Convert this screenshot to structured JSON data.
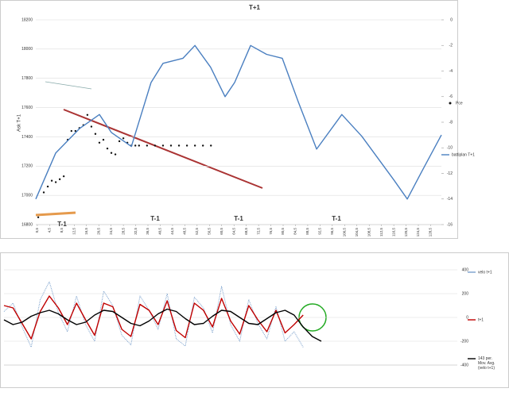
{
  "chart_data": [
    {
      "type": "line",
      "title": "T+1",
      "y_label": "Ask T+1",
      "xlim": [
        0,
        132
      ],
      "xticks": [
        {
          "value": 0.5,
          "label": "0,5"
        },
        {
          "value": 4.5,
          "label": "4,5"
        },
        {
          "value": 8.5,
          "label": "8,5"
        },
        {
          "value": 12.5,
          "label": "12,5"
        },
        {
          "value": 16.5,
          "label": "16,5"
        },
        {
          "value": 20.5,
          "label": "20,5"
        },
        {
          "value": 24.5,
          "label": "24,5"
        },
        {
          "value": 28.5,
          "label": "28,5"
        },
        {
          "value": 32.5,
          "label": "32,5"
        },
        {
          "value": 36.5,
          "label": "36,5"
        },
        {
          "value": 40.5,
          "label": "40,5"
        },
        {
          "value": 44.5,
          "label": "44,5"
        },
        {
          "value": 48.5,
          "label": "48,5"
        },
        {
          "value": 52.5,
          "label": "52,5"
        },
        {
          "value": 56.5,
          "label": "56,5"
        },
        {
          "value": 60.5,
          "label": "60,5"
        },
        {
          "value": 64.5,
          "label": "64,5"
        },
        {
          "value": 68.5,
          "label": "68,5"
        },
        {
          "value": 72.5,
          "label": "72,5"
        },
        {
          "value": 76.5,
          "label": "76,5"
        },
        {
          "value": 80.5,
          "label": "80,5"
        },
        {
          "value": 84.5,
          "label": "84,5"
        },
        {
          "value": 88.5,
          "label": "88,5"
        },
        {
          "value": 92.5,
          "label": "92,5"
        },
        {
          "value": 96.5,
          "label": "96,5"
        },
        {
          "value": 100.5,
          "label": "100,5"
        },
        {
          "value": 104.5,
          "label": "104,5"
        },
        {
          "value": 108.5,
          "label": "108,5"
        },
        {
          "value": 112.5,
          "label": "112,5"
        },
        {
          "value": 116.5,
          "label": "116,5"
        },
        {
          "value": 120.5,
          "label": "120,5"
        },
        {
          "value": 124.5,
          "label": "124,5"
        },
        {
          "value": 128.5,
          "label": "128,5"
        }
      ],
      "ylim": [
        16800,
        18200
      ],
      "yticks": [
        16800,
        17000,
        17200,
        17400,
        17600,
        17800,
        18000,
        18200
      ],
      "y2lim": [
        -16,
        0
      ],
      "y2ticks": [
        -16,
        -14,
        -12,
        -10,
        -8,
        -6,
        -4,
        -2,
        0
      ],
      "grid": true,
      "annotations": [
        "T-1",
        "T-1",
        "T-1",
        "T-1"
      ],
      "series": [
        {
          "name": "Pce",
          "color": "#111111",
          "axis": "y",
          "marker": "dot",
          "x": [
            0.8,
            2.6,
            3.9,
            5.2,
            6.5,
            7.8,
            9.1,
            10.4,
            11.6,
            12.9,
            14.2,
            15.5,
            16.8,
            18.1,
            19.4,
            20.7,
            22,
            23.3,
            24.6,
            25.9,
            27.2,
            28.5,
            29.8,
            31.1,
            32.4,
            33.6,
            36.2,
            38.8,
            41.4,
            44,
            46.6,
            49.2,
            51.8,
            54.4,
            57
          ],
          "values": [
            16850,
            17020,
            17060,
            17100,
            17090,
            17110,
            17130,
            17380,
            17440,
            17440,
            17460,
            17480,
            17550,
            17470,
            17420,
            17360,
            17380,
            17320,
            17290,
            17280,
            17370,
            17390,
            17360,
            17340,
            17340,
            17340,
            17340,
            17340,
            17340,
            17340,
            17340,
            17340,
            17340,
            17340,
            17340
          ]
        },
        {
          "name": "battiplan T+1",
          "color": "#4a7fc0",
          "axis": "y2",
          "x": [
            0,
            6.5,
            14.2,
            20.7,
            24.6,
            31.1,
            37.5,
            41.4,
            47.9,
            51.8,
            56.9,
            61.6,
            64.7,
            69.9,
            75.1,
            80.2,
            85.4,
            91.4,
            99.6,
            106.1,
            116.5,
            120.9,
            125.5,
            132
          ],
          "values": [
            -14,
            -10.4,
            -8.5,
            -7.4,
            -8.8,
            -9.9,
            -4.9,
            -3.4,
            -3,
            -2,
            -3.7,
            -6,
            -4.9,
            -2,
            -2.7,
            -3,
            -6.4,
            -10.1,
            -7.4,
            -9.1,
            -12.5,
            -14,
            -11.9,
            -9
          ]
        }
      ]
    },
    {
      "type": "line",
      "xlim": [
        0,
        100
      ],
      "ylim": [
        -400,
        400
      ],
      "yticks": [
        -400,
        -200,
        0,
        200,
        400
      ],
      "grid": true,
      "series": [
        {
          "name": "velo t+1",
          "color": "#7aa0cc",
          "dotted": true,
          "x": [
            0,
            2,
            4,
            6,
            8,
            10,
            12,
            14,
            16,
            18,
            20,
            22,
            24,
            26,
            28,
            30,
            32,
            34,
            36,
            38,
            40,
            42,
            44,
            46,
            48,
            50,
            52,
            54,
            56,
            58,
            60,
            62,
            64,
            66
          ],
          "values": [
            50,
            120,
            -80,
            -250,
            150,
            300,
            40,
            -120,
            180,
            -60,
            -200,
            220,
            100,
            -150,
            -230,
            180,
            60,
            -100,
            200,
            -180,
            -240,
            170,
            80,
            -130,
            260,
            -60,
            -200,
            150,
            -50,
            -180,
            90,
            -200,
            -120,
            -250
          ]
        },
        {
          "name": "t+1",
          "color": "#c00000",
          "x": [
            0,
            2,
            4,
            6,
            8,
            10,
            12,
            14,
            16,
            18,
            20,
            22,
            24,
            26,
            28,
            30,
            32,
            34,
            36,
            38,
            40,
            42,
            44,
            46,
            48,
            50,
            52,
            54,
            56,
            58,
            60,
            62,
            64,
            66
          ],
          "values": [
            100,
            80,
            -50,
            -180,
            50,
            180,
            80,
            -60,
            120,
            -20,
            -150,
            120,
            90,
            -100,
            -160,
            110,
            60,
            -60,
            140,
            -110,
            -170,
            120,
            60,
            -80,
            160,
            -30,
            -140,
            100,
            -20,
            -120,
            60,
            -130,
            -60,
            20
          ]
        },
        {
          "name": "143 per. Mov. Avg. (velo t+1)",
          "color": "#000000",
          "x": [
            0,
            2,
            4,
            6,
            8,
            10,
            12,
            14,
            16,
            18,
            20,
            22,
            24,
            26,
            28,
            30,
            32,
            34,
            36,
            38,
            40,
            42,
            44,
            46,
            48,
            50,
            52,
            54,
            56,
            58,
            60,
            62,
            64,
            66,
            68,
            70
          ],
          "values": [
            -20,
            -60,
            -40,
            10,
            40,
            60,
            30,
            -20,
            -60,
            -40,
            20,
            60,
            50,
            0,
            -50,
            -70,
            -30,
            30,
            70,
            50,
            -10,
            -60,
            -50,
            10,
            60,
            50,
            0,
            -50,
            -60,
            -10,
            40,
            60,
            20,
            -80,
            -160,
            -200
          ]
        }
      ]
    }
  ]
}
